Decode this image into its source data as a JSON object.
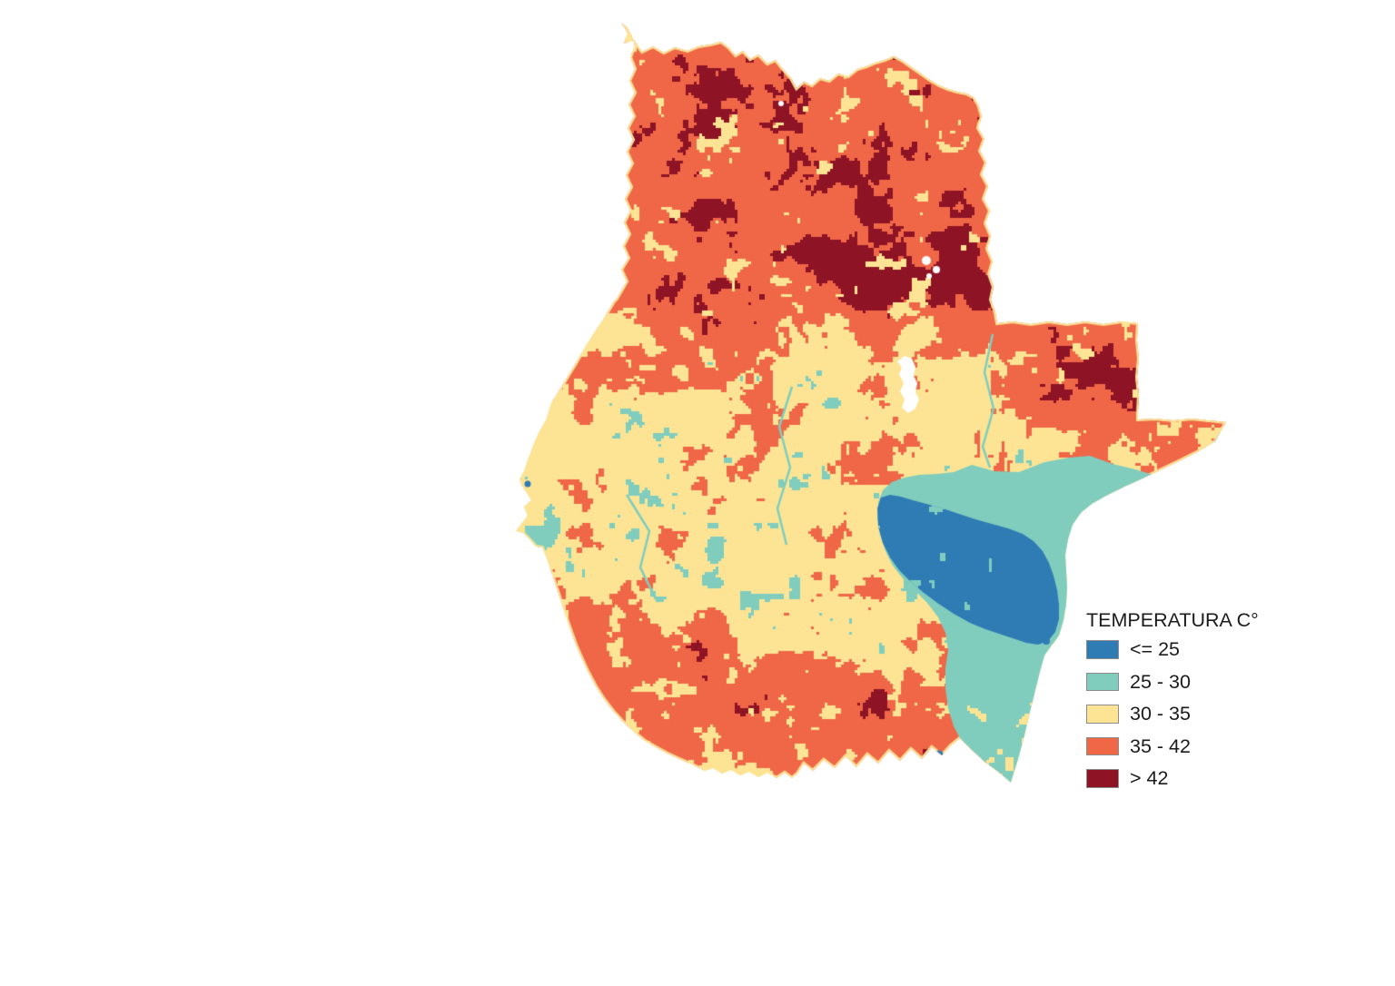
{
  "page": {
    "background_color": "#FFFFFF"
  },
  "legend": {
    "title": "TEMPERATURA C°",
    "text_color": "#1B1B1B",
    "swatch_border_color": "#8C8C8C",
    "classes": [
      {
        "label": "<= 25",
        "color": "#2F7CB5"
      },
      {
        "label": "25 - 30",
        "color": "#80CDBE"
      },
      {
        "label": "30 - 35",
        "color": "#FCE494"
      },
      {
        "label": "35 - 42",
        "color": "#F06748"
      },
      {
        "label": "> 42",
        "color": "#8E1425"
      }
    ]
  },
  "map": {
    "no_data_color": "#FFFFFF"
  }
}
